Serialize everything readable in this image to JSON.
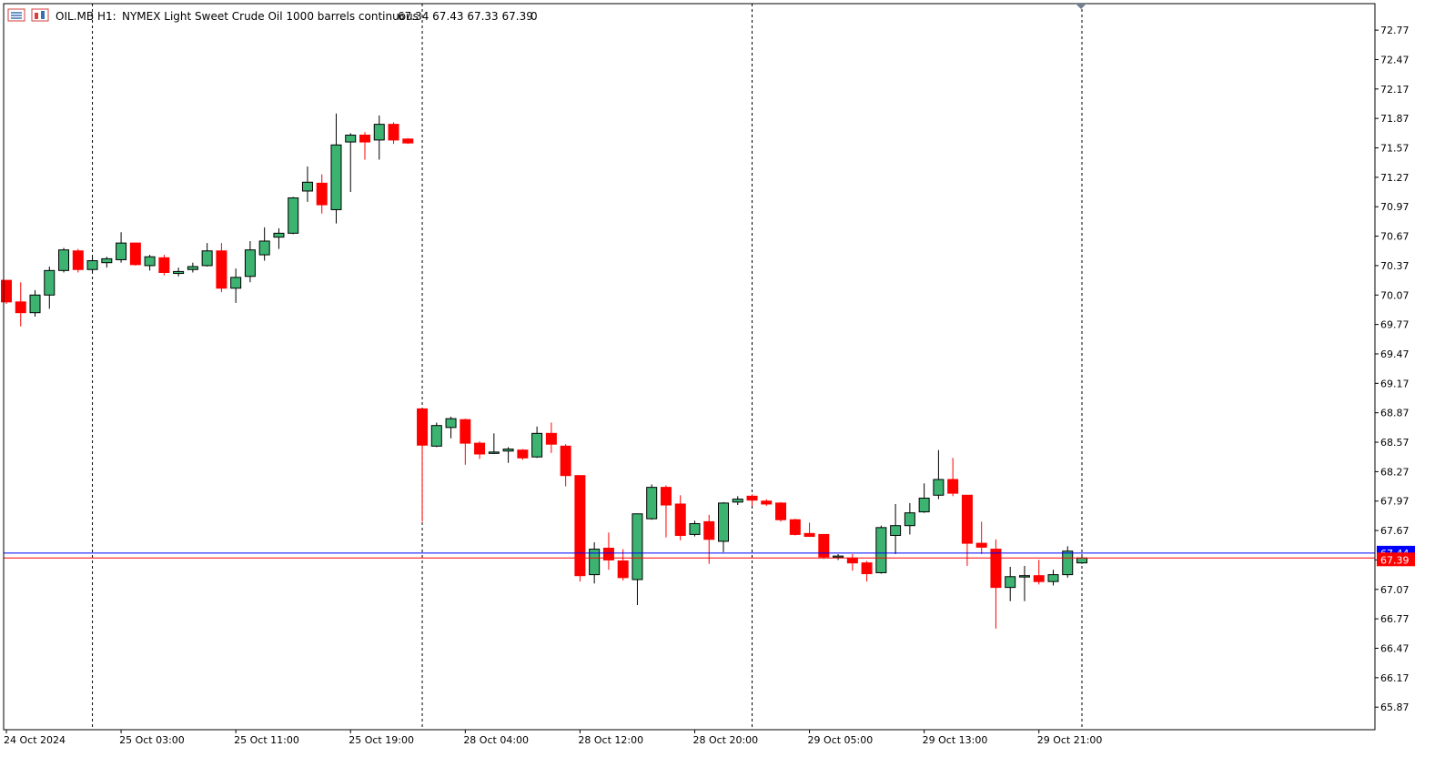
{
  "header": {
    "symbol": "OIL.MB",
    "timeframe": "H1:",
    "description": "NYMEX Light Sweet Crude Oil 1000 barrels continuous",
    "ohlc": "67.34 67.43 67.33 67.39",
    "volume": "0"
  },
  "colors": {
    "up_candle": "#3cb371",
    "down_candle": "#ff0000",
    "candle_border": "#000000",
    "bid_line": "#ff0000",
    "ask_line": "#0000ff",
    "ask_label_bg": "#0000ff",
    "bid_label_bg": "#ff0000",
    "separator": "#000000",
    "axis_text": "#000000"
  },
  "chart_data": {
    "type": "candlestick",
    "ylim": [
      65.64,
      73.04
    ],
    "y_ticks": [
      "72.77",
      "72.47",
      "72.17",
      "71.87",
      "71.57",
      "71.27",
      "70.97",
      "70.67",
      "70.37",
      "70.07",
      "69.77",
      "69.47",
      "69.17",
      "68.87",
      "68.57",
      "68.27",
      "67.97",
      "67.67",
      "67.37",
      "67.07",
      "66.77",
      "66.47",
      "66.17",
      "65.87"
    ],
    "x_labels": [
      "24 Oct 2024",
      "25 Oct 03:00",
      "25 Oct 11:00",
      "25 Oct 19:00",
      "28 Oct 04:00",
      "28 Oct 12:00",
      "28 Oct 20:00",
      "29 Oct 05:00",
      "29 Oct 13:00",
      "29 Oct 21:00"
    ],
    "bid_price": "67.39",
    "ask_price": "67.44",
    "session_separators": [
      6,
      29,
      52,
      75
    ],
    "candles": [
      {
        "o": 70.22,
        "h": 70.22,
        "l": 69.98,
        "c": 70.0
      },
      {
        "o": 70.0,
        "h": 70.2,
        "l": 69.75,
        "c": 69.89
      },
      {
        "o": 69.89,
        "h": 70.12,
        "l": 69.85,
        "c": 70.07
      },
      {
        "o": 70.07,
        "h": 70.36,
        "l": 69.93,
        "c": 70.32
      },
      {
        "o": 70.32,
        "h": 70.55,
        "l": 70.3,
        "c": 70.53
      },
      {
        "o": 70.52,
        "h": 70.54,
        "l": 70.3,
        "c": 70.33
      },
      {
        "o": 70.33,
        "h": 70.46,
        "l": 70.3,
        "c": 70.42
      },
      {
        "o": 70.4,
        "h": 70.46,
        "l": 70.35,
        "c": 70.44
      },
      {
        "o": 70.43,
        "h": 70.71,
        "l": 70.4,
        "c": 70.6
      },
      {
        "o": 70.6,
        "h": 70.6,
        "l": 70.37,
        "c": 70.38
      },
      {
        "o": 70.37,
        "h": 70.48,
        "l": 70.32,
        "c": 70.46
      },
      {
        "o": 70.45,
        "h": 70.48,
        "l": 70.27,
        "c": 70.3
      },
      {
        "o": 70.29,
        "h": 70.35,
        "l": 70.26,
        "c": 70.31
      },
      {
        "o": 70.33,
        "h": 70.4,
        "l": 70.3,
        "c": 70.36
      },
      {
        "o": 70.37,
        "h": 70.6,
        "l": 70.36,
        "c": 70.52
      },
      {
        "o": 70.52,
        "h": 70.6,
        "l": 70.1,
        "c": 70.14
      },
      {
        "o": 70.14,
        "h": 70.34,
        "l": 69.99,
        "c": 70.25
      },
      {
        "o": 70.26,
        "h": 70.62,
        "l": 70.2,
        "c": 70.53
      },
      {
        "o": 70.48,
        "h": 70.76,
        "l": 70.42,
        "c": 70.62
      },
      {
        "o": 70.66,
        "h": 70.75,
        "l": 70.54,
        "c": 70.7
      },
      {
        "o": 70.7,
        "h": 71.07,
        "l": 70.69,
        "c": 71.06
      },
      {
        "o": 71.13,
        "h": 71.38,
        "l": 71.02,
        "c": 71.22
      },
      {
        "o": 71.21,
        "h": 71.3,
        "l": 70.9,
        "c": 70.99
      },
      {
        "o": 70.94,
        "h": 71.92,
        "l": 70.8,
        "c": 71.6
      },
      {
        "o": 71.63,
        "h": 71.72,
        "l": 71.12,
        "c": 71.7
      },
      {
        "o": 71.7,
        "h": 71.73,
        "l": 71.45,
        "c": 71.63
      },
      {
        "o": 71.65,
        "h": 71.9,
        "l": 71.45,
        "c": 71.81
      },
      {
        "o": 71.81,
        "h": 71.83,
        "l": 71.61,
        "c": 71.65
      },
      {
        "o": 71.66,
        "h": 71.67,
        "l": 71.61,
        "c": 71.62
      },
      {
        "o": 68.91,
        "h": 68.91,
        "l": 67.76,
        "c": 68.54
      },
      {
        "o": 68.53,
        "h": 68.77,
        "l": 68.52,
        "c": 68.74
      },
      {
        "o": 68.72,
        "h": 68.83,
        "l": 68.61,
        "c": 68.81
      },
      {
        "o": 68.8,
        "h": 68.81,
        "l": 68.34,
        "c": 68.56
      },
      {
        "o": 68.56,
        "h": 68.58,
        "l": 68.4,
        "c": 68.45
      },
      {
        "o": 68.47,
        "h": 68.66,
        "l": 68.45,
        "c": 68.47
      },
      {
        "o": 68.48,
        "h": 68.52,
        "l": 68.36,
        "c": 68.5
      },
      {
        "o": 68.49,
        "h": 68.5,
        "l": 68.39,
        "c": 68.41
      },
      {
        "o": 68.42,
        "h": 68.73,
        "l": 68.41,
        "c": 68.66
      },
      {
        "o": 68.66,
        "h": 68.77,
        "l": 68.46,
        "c": 68.55
      },
      {
        "o": 68.53,
        "h": 68.55,
        "l": 68.12,
        "c": 68.23
      },
      {
        "o": 68.23,
        "h": 68.23,
        "l": 67.15,
        "c": 67.21
      },
      {
        "o": 67.22,
        "h": 67.55,
        "l": 67.13,
        "c": 67.48
      },
      {
        "o": 67.49,
        "h": 67.65,
        "l": 67.27,
        "c": 67.37
      },
      {
        "o": 67.36,
        "h": 67.48,
        "l": 67.16,
        "c": 67.19
      },
      {
        "o": 67.17,
        "h": 67.83,
        "l": 66.91,
        "c": 67.84
      },
      {
        "o": 67.79,
        "h": 68.14,
        "l": 67.78,
        "c": 68.11
      },
      {
        "o": 68.11,
        "h": 68.13,
        "l": 67.6,
        "c": 67.93
      },
      {
        "o": 67.94,
        "h": 68.03,
        "l": 67.57,
        "c": 67.62
      },
      {
        "o": 67.63,
        "h": 67.77,
        "l": 67.61,
        "c": 67.74
      },
      {
        "o": 67.76,
        "h": 67.83,
        "l": 67.33,
        "c": 67.58
      },
      {
        "o": 67.56,
        "h": 67.96,
        "l": 67.45,
        "c": 67.95
      },
      {
        "o": 67.96,
        "h": 68.02,
        "l": 67.93,
        "c": 67.99
      },
      {
        "o": 68.02,
        "h": 68.04,
        "l": 67.92,
        "c": 67.98
      },
      {
        "o": 67.97,
        "h": 67.99,
        "l": 67.92,
        "c": 67.94
      },
      {
        "o": 67.95,
        "h": 67.96,
        "l": 67.76,
        "c": 67.78
      },
      {
        "o": 67.78,
        "h": 67.79,
        "l": 67.62,
        "c": 67.63
      },
      {
        "o": 67.64,
        "h": 67.75,
        "l": 67.62,
        "c": 67.61
      },
      {
        "o": 67.63,
        "h": 67.63,
        "l": 67.38,
        "c": 67.4
      },
      {
        "o": 67.4,
        "h": 67.43,
        "l": 67.37,
        "c": 67.41
      },
      {
        "o": 67.39,
        "h": 67.43,
        "l": 67.26,
        "c": 67.34
      },
      {
        "o": 67.34,
        "h": 67.36,
        "l": 67.15,
        "c": 67.23
      },
      {
        "o": 67.24,
        "h": 67.72,
        "l": 67.23,
        "c": 67.7
      },
      {
        "o": 67.62,
        "h": 67.94,
        "l": 67.43,
        "c": 67.72
      },
      {
        "o": 67.72,
        "h": 67.95,
        "l": 67.63,
        "c": 67.85
      },
      {
        "o": 67.86,
        "h": 68.15,
        "l": 67.85,
        "c": 68.0
      },
      {
        "o": 68.03,
        "h": 68.49,
        "l": 67.99,
        "c": 68.19
      },
      {
        "o": 68.19,
        "h": 68.41,
        "l": 68.02,
        "c": 68.05
      },
      {
        "o": 68.03,
        "h": 68.03,
        "l": 67.31,
        "c": 67.54
      },
      {
        "o": 67.54,
        "h": 67.76,
        "l": 67.43,
        "c": 67.5
      },
      {
        "o": 67.48,
        "h": 67.58,
        "l": 66.67,
        "c": 67.09
      },
      {
        "o": 67.09,
        "h": 67.3,
        "l": 66.95,
        "c": 67.2
      },
      {
        "o": 67.2,
        "h": 67.31,
        "l": 66.95,
        "c": 67.21
      },
      {
        "o": 67.21,
        "h": 67.37,
        "l": 67.12,
        "c": 67.15
      },
      {
        "o": 67.15,
        "h": 67.27,
        "l": 67.11,
        "c": 67.22
      },
      {
        "o": 67.22,
        "h": 67.51,
        "l": 67.19,
        "c": 67.46
      },
      {
        "o": 67.34,
        "h": 67.43,
        "l": 67.33,
        "c": 67.39
      }
    ]
  }
}
